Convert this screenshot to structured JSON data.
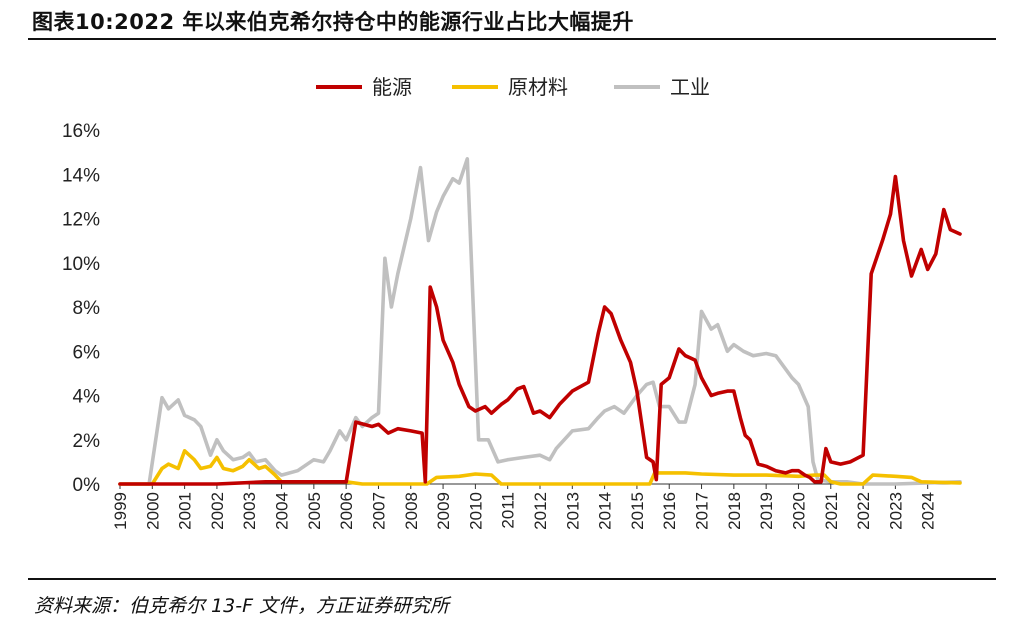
{
  "title": "图表10:2022 年以来伯克希尔持仓中的能源行业占比大幅提升",
  "source": "资料来源：伯克希尔 13-F 文件，方正证券研究所",
  "chart_data": {
    "type": "line",
    "title": "图表10:2022 年以来伯克希尔持仓中的能源行业占比大幅提升",
    "xlabel": "",
    "ylabel": "",
    "ylim": [
      0,
      16
    ],
    "xlim": [
      1999.0,
      2025.0
    ],
    "yticks": [
      "0%",
      "2%",
      "4%",
      "6%",
      "8%",
      "10%",
      "12%",
      "14%",
      "16%"
    ],
    "xticks": [
      "1999",
      "2000",
      "2001",
      "2002",
      "2003",
      "2004",
      "2005",
      "2006",
      "2007",
      "2008",
      "2009",
      "2010",
      "2011",
      "2012",
      "2013",
      "2014",
      "2015",
      "2016",
      "2017",
      "2018",
      "2019",
      "2020",
      "2021",
      "2022",
      "2023",
      "2024"
    ],
    "grid": false,
    "legend_position": "top-center",
    "series": [
      {
        "name": "能源",
        "color": "#c00000",
        "points": [
          [
            1999.0,
            0
          ],
          [
            2002.0,
            0
          ],
          [
            2003.5,
            0.1
          ],
          [
            2006.0,
            0.1
          ],
          [
            2006.3,
            2.8
          ],
          [
            2006.8,
            2.6
          ],
          [
            2007.0,
            2.7
          ],
          [
            2007.3,
            2.3
          ],
          [
            2007.6,
            2.5
          ],
          [
            2008.0,
            2.4
          ],
          [
            2008.35,
            2.3
          ],
          [
            2008.45,
            0.1
          ],
          [
            2008.6,
            8.9
          ],
          [
            2008.8,
            8.0
          ],
          [
            2009.0,
            6.5
          ],
          [
            2009.3,
            5.5
          ],
          [
            2009.5,
            4.5
          ],
          [
            2009.8,
            3.5
          ],
          [
            2010.0,
            3.3
          ],
          [
            2010.3,
            3.5
          ],
          [
            2010.5,
            3.2
          ],
          [
            2010.8,
            3.6
          ],
          [
            2011.0,
            3.8
          ],
          [
            2011.3,
            4.3
          ],
          [
            2011.5,
            4.4
          ],
          [
            2011.8,
            3.2
          ],
          [
            2012.0,
            3.3
          ],
          [
            2012.3,
            3.0
          ],
          [
            2012.6,
            3.6
          ],
          [
            2013.0,
            4.2
          ],
          [
            2013.5,
            4.6
          ],
          [
            2013.8,
            6.8
          ],
          [
            2014.0,
            8.0
          ],
          [
            2014.2,
            7.7
          ],
          [
            2014.5,
            6.5
          ],
          [
            2014.8,
            5.5
          ],
          [
            2015.0,
            4.2
          ],
          [
            2015.3,
            1.2
          ],
          [
            2015.5,
            1.0
          ],
          [
            2015.6,
            0.2
          ],
          [
            2015.75,
            4.5
          ],
          [
            2016.0,
            4.8
          ],
          [
            2016.3,
            6.1
          ],
          [
            2016.5,
            5.8
          ],
          [
            2016.8,
            5.6
          ],
          [
            2017.0,
            4.8
          ],
          [
            2017.3,
            4.0
          ],
          [
            2017.5,
            4.1
          ],
          [
            2017.8,
            4.2
          ],
          [
            2018.0,
            4.2
          ],
          [
            2018.2,
            3.0
          ],
          [
            2018.35,
            2.2
          ],
          [
            2018.5,
            2.0
          ],
          [
            2018.75,
            0.9
          ],
          [
            2019.0,
            0.8
          ],
          [
            2019.3,
            0.6
          ],
          [
            2019.6,
            0.5
          ],
          [
            2019.8,
            0.6
          ],
          [
            2020.0,
            0.6
          ],
          [
            2020.2,
            0.4
          ],
          [
            2020.35,
            0.3
          ],
          [
            2020.5,
            0.1
          ],
          [
            2020.7,
            0.1
          ],
          [
            2020.85,
            1.6
          ],
          [
            2021.0,
            1.0
          ],
          [
            2021.3,
            0.9
          ],
          [
            2021.6,
            1.0
          ],
          [
            2022.0,
            1.3
          ],
          [
            2022.25,
            9.5
          ],
          [
            2022.6,
            11.0
          ],
          [
            2022.85,
            12.2
          ],
          [
            2023.0,
            13.9
          ],
          [
            2023.25,
            11.0
          ],
          [
            2023.5,
            9.4
          ],
          [
            2023.8,
            10.6
          ],
          [
            2024.0,
            9.7
          ],
          [
            2024.25,
            10.4
          ],
          [
            2024.5,
            12.4
          ],
          [
            2024.7,
            11.5
          ],
          [
            2025.0,
            11.3
          ]
        ]
      },
      {
        "name": "原材料",
        "color": "#f5c000",
        "points": [
          [
            1999.0,
            0
          ],
          [
            2000.0,
            0
          ],
          [
            2000.3,
            0.7
          ],
          [
            2000.5,
            0.9
          ],
          [
            2000.8,
            0.7
          ],
          [
            2001.0,
            1.5
          ],
          [
            2001.3,
            1.1
          ],
          [
            2001.5,
            0.7
          ],
          [
            2001.8,
            0.8
          ],
          [
            2002.0,
            1.2
          ],
          [
            2002.2,
            0.7
          ],
          [
            2002.5,
            0.6
          ],
          [
            2002.8,
            0.8
          ],
          [
            2003.0,
            1.1
          ],
          [
            2003.3,
            0.7
          ],
          [
            2003.5,
            0.8
          ],
          [
            2003.8,
            0.4
          ],
          [
            2004.0,
            0.1
          ],
          [
            2004.5,
            0.1
          ],
          [
            2006.0,
            0.1
          ],
          [
            2006.5,
            0
          ],
          [
            2008.5,
            0
          ],
          [
            2008.8,
            0.3
          ],
          [
            2009.5,
            0.35
          ],
          [
            2010.0,
            0.45
          ],
          [
            2010.5,
            0.4
          ],
          [
            2010.8,
            0
          ],
          [
            2015.4,
            0
          ],
          [
            2015.55,
            0.5
          ],
          [
            2016.5,
            0.5
          ],
          [
            2017.0,
            0.45
          ],
          [
            2018.0,
            0.4
          ],
          [
            2019.0,
            0.4
          ],
          [
            2020.0,
            0.35
          ],
          [
            2020.5,
            0.4
          ],
          [
            2020.8,
            0.4
          ],
          [
            2021.0,
            0.1
          ],
          [
            2021.3,
            0
          ],
          [
            2022.0,
            0
          ],
          [
            2022.3,
            0.4
          ],
          [
            2023.0,
            0.35
          ],
          [
            2023.5,
            0.3
          ],
          [
            2023.8,
            0.1
          ],
          [
            2025.0,
            0.05
          ]
        ]
      },
      {
        "name": "工业",
        "color": "#c0c0c0",
        "points": [
          [
            1999.0,
            0
          ],
          [
            1999.9,
            0
          ],
          [
            2000.3,
            3.9
          ],
          [
            2000.5,
            3.4
          ],
          [
            2000.8,
            3.8
          ],
          [
            2001.0,
            3.1
          ],
          [
            2001.3,
            2.9
          ],
          [
            2001.5,
            2.6
          ],
          [
            2001.8,
            1.3
          ],
          [
            2002.0,
            2.0
          ],
          [
            2002.2,
            1.5
          ],
          [
            2002.5,
            1.1
          ],
          [
            2002.8,
            1.2
          ],
          [
            2003.0,
            1.4
          ],
          [
            2003.2,
            1.0
          ],
          [
            2003.5,
            1.1
          ],
          [
            2003.8,
            0.6
          ],
          [
            2004.0,
            0.4
          ],
          [
            2004.5,
            0.6
          ],
          [
            2005.0,
            1.1
          ],
          [
            2005.3,
            1.0
          ],
          [
            2005.5,
            1.5
          ],
          [
            2005.8,
            2.4
          ],
          [
            2006.0,
            2.0
          ],
          [
            2006.3,
            3.0
          ],
          [
            2006.5,
            2.6
          ],
          [
            2006.8,
            3.0
          ],
          [
            2007.0,
            3.2
          ],
          [
            2007.2,
            10.2
          ],
          [
            2007.4,
            8.0
          ],
          [
            2007.6,
            9.5
          ],
          [
            2008.0,
            12.0
          ],
          [
            2008.3,
            14.3
          ],
          [
            2008.55,
            11.0
          ],
          [
            2008.8,
            12.3
          ],
          [
            2009.0,
            13.0
          ],
          [
            2009.3,
            13.8
          ],
          [
            2009.5,
            13.6
          ],
          [
            2009.75,
            14.7
          ],
          [
            2010.1,
            2.0
          ],
          [
            2010.4,
            2.0
          ],
          [
            2010.7,
            1.0
          ],
          [
            2011.0,
            1.1
          ],
          [
            2011.5,
            1.2
          ],
          [
            2012.0,
            1.3
          ],
          [
            2012.3,
            1.1
          ],
          [
            2012.5,
            1.6
          ],
          [
            2013.0,
            2.4
          ],
          [
            2013.5,
            2.5
          ],
          [
            2013.8,
            3.0
          ],
          [
            2014.0,
            3.3
          ],
          [
            2014.3,
            3.5
          ],
          [
            2014.6,
            3.2
          ],
          [
            2015.0,
            4.0
          ],
          [
            2015.3,
            4.5
          ],
          [
            2015.5,
            4.6
          ],
          [
            2015.7,
            3.5
          ],
          [
            2016.0,
            3.5
          ],
          [
            2016.3,
            2.8
          ],
          [
            2016.5,
            2.8
          ],
          [
            2016.8,
            4.5
          ],
          [
            2017.0,
            7.8
          ],
          [
            2017.3,
            7.0
          ],
          [
            2017.5,
            7.2
          ],
          [
            2017.8,
            6.0
          ],
          [
            2018.0,
            6.3
          ],
          [
            2018.3,
            6.0
          ],
          [
            2018.6,
            5.8
          ],
          [
            2019.0,
            5.9
          ],
          [
            2019.3,
            5.8
          ],
          [
            2019.6,
            5.2
          ],
          [
            2019.8,
            4.8
          ],
          [
            2020.0,
            4.5
          ],
          [
            2020.3,
            3.5
          ],
          [
            2020.45,
            1.0
          ],
          [
            2020.6,
            0.2
          ],
          [
            2021.0,
            0.1
          ],
          [
            2021.5,
            0.1
          ],
          [
            2022.0,
            0
          ],
          [
            2023.0,
            0
          ],
          [
            2024.0,
            0.05
          ],
          [
            2025.0,
            0.1
          ]
        ]
      }
    ]
  }
}
